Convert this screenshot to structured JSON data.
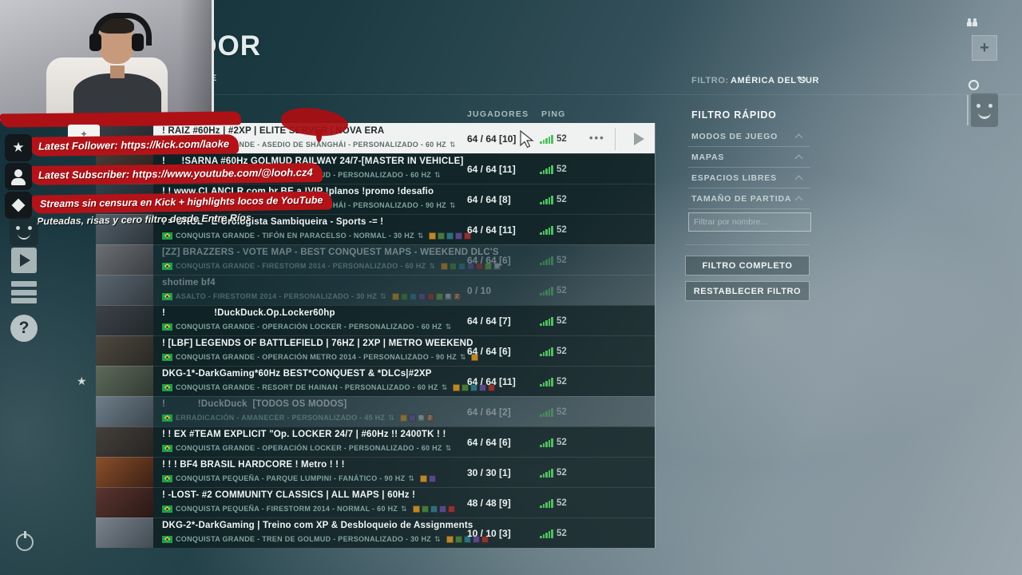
{
  "header": {
    "title": "EXPLORAR SERVIDOR",
    "subtitle_fragment": "TE"
  },
  "filter_bar": {
    "label": "FILTRO:",
    "value": "AMÉRICA DEL SUR"
  },
  "quick_filter": {
    "title": "FILTRO RÁPIDO",
    "sections": [
      "MODOS DE JUEGO",
      "MAPAS",
      "ESPACIOS LIBRES",
      "TAMAÑO DE PARTIDA"
    ],
    "name_filter_placeholder": "Filtrar por nombre...",
    "buttons": [
      "FILTRO COMPLETO",
      "RESTABLECER FILTRO"
    ]
  },
  "stream_overlay": {
    "alerts": [
      {
        "icon": "star",
        "text": "Latest Follower: https://kick.com/laoke"
      },
      {
        "icon": "person",
        "text": "Latest Subscriber: https://www.youtube.com/@looh.cz4"
      },
      {
        "icon": "diamond",
        "text": "Streams sin censura en Kick + highlights locos de YouTube"
      }
    ],
    "tagline": "Puteadas, risas y cero filtro desde Entre Ríos"
  },
  "icons": {
    "rail": [
      "smiley-face",
      "play",
      "server-list",
      "help",
      "power"
    ],
    "row": [
      "brazil-flag",
      "rank-updown-arrows",
      "ping-bars",
      "more-options-dots",
      "join-play"
    ],
    "top_right": [
      "people",
      "plus",
      "circle",
      "robot-face"
    ],
    "filter": [
      "refresh",
      "chevron-up"
    ]
  },
  "colors": {
    "accent_green": "#4fbf5f",
    "banner_red": "#b31318",
    "selected_row": "#f0f2f2"
  },
  "dlc_colors": {
    "xp-orange": "#b9872c",
    "xp-green": "#45783f",
    "xp-teal": "#2f6e7c",
    "xp-purple": "#564a84",
    "xp-red": "#8a3434",
    "prem-green": "#5f9447",
    "gear-gray": "#6f7f82",
    "num-badge": "#8a5a3a"
  },
  "server_list": {
    "columns": {
      "players": "JUGADORES",
      "ping": "PING"
    },
    "rows": [
      {
        "name": "! RAIZ #60Hz | #2XP | ELITE SERVER | NOVA ERA",
        "details": "CONQUISTA GRANDE - ASEDIO DE SHANGHÁI - PERSONALIZADO -  60 HZ",
        "players": "64 / 64 [10]",
        "ping": "52",
        "state": "selected",
        "favorite": false,
        "dlc": []
      },
      {
        "name": "!      !SARNA #60Hz GOLMUD RAILWAY 24/7-[MASTER IN VEHICLE]",
        "details": "CONQUISTA GRANDE - TREN DE GOLMUD - PERSONALIZADO -  60 HZ",
        "players": "64 / 64 [11]",
        "ping": "52",
        "state": "normal",
        "favorite": false,
        "dlc": []
      },
      {
        "name": "! ! www.CLANCLR.com.br BE a !VIP !planos !promo !desafio",
        "details": "CONQUISTA GRANDE - ASEDIO DE SHANGHÁI - PERSONALIZADO -  90 HZ",
        "players": "64 / 64 [8]",
        "ping": "52",
        "state": "normal",
        "favorite": false,
        "dlc": []
      },
      {
        "name": "! = UROL - E-Urologista Sambiqueira - Sports -= !",
        "details": "CONQUISTA GRANDE - TIFÓN EN PARACELSO - NORMAL -  30 HZ",
        "players": "64 / 64 [11]",
        "ping": "52",
        "state": "normal",
        "favorite": false,
        "dlc": [
          "xp-orange",
          "xp-green",
          "xp-teal",
          "xp-purple",
          "xp-red"
        ]
      },
      {
        "name": "[ZZ] BRAZZERS - VOTE MAP - BEST CONQUEST MAPS - WEEKEND DLC'S",
        "details": "CONQUISTA GRANDE - FIRESTORM 2014 - PERSONALIZADO -  60 HZ",
        "players": "64 / 64 [6]",
        "ping": "52",
        "state": "dimmed",
        "favorite": false,
        "dlc": [
          "xp-orange",
          "xp-green",
          "xp-teal",
          "xp-purple",
          "xp-red",
          "prem-green",
          "gear-gray"
        ]
      },
      {
        "name": "shotime bf4",
        "details": "ASALTO - FIRESTORM 2014 - PERSONALIZADO -  30 HZ",
        "players": "0 / 10",
        "ping": "52",
        "state": "dimmed",
        "favorite": false,
        "dlc": [
          "xp-orange",
          "xp-green",
          "xp-teal",
          "xp-purple",
          "xp-red",
          "prem-green",
          "gear-gray",
          "num-badge"
        ]
      },
      {
        "name": "!                  !DuckDuck.Op.Locker60hp",
        "details": "CONQUISTA GRANDE - OPERACIÓN LOCKER - PERSONALIZADO -  60 HZ",
        "players": "64 / 64 [7]",
        "ping": "52",
        "state": "normal",
        "favorite": false,
        "dlc": []
      },
      {
        "name": "! [LBF] LEGENDS OF BATTLEFIELD | 76HZ | 2XP | METRO WEEKEND",
        "details": "CONQUISTA GRANDE - OPERACIÓN METRO 2014 - PERSONALIZADO -  90 HZ",
        "players": "64 / 64 [6]",
        "ping": "52",
        "state": "normal",
        "favorite": false,
        "dlc": [
          "xp-orange"
        ]
      },
      {
        "name": "DKG-1*-DarkGaming*60Hz BEST*CONQUEST & *DLCs|#2XP",
        "details": "CONQUISTA GRANDE - RESORT DE HAINAN - PERSONALIZADO -  60 HZ",
        "players": "64 / 64 [11]",
        "ping": "52",
        "state": "normal",
        "favorite": true,
        "dlc": [
          "xp-orange",
          "xp-green",
          "xp-teal",
          "xp-purple",
          "xp-red"
        ]
      },
      {
        "name": "!            !DuckDuck  [TODOS OS MODOS]",
        "details": "ERRADICACIÓN - AMANECER - PERSONALIZADO -  45 HZ",
        "players": "64 / 64 [2]",
        "ping": "52",
        "state": "dimmed",
        "favorite": false,
        "dlc": [
          "xp-orange",
          "xp-purple",
          "gear-gray",
          "num-badge"
        ]
      },
      {
        "name": "! ! EX #TEAM EXPLICIT \"Op. LOCKER 24/7 | #60Hz !! 2400TK ! !",
        "details": "CONQUISTA GRANDE - OPERACIÓN LOCKER - PERSONALIZADO -  60 HZ",
        "players": "64 / 64 [6]",
        "ping": "52",
        "state": "normal",
        "favorite": false,
        "dlc": []
      },
      {
        "name": "! ! ! BF4 BRASIL HARDCORE ! Metro ! ! !",
        "details": "CONQUISTA PEQUEÑA - PARQUE LUMPINI - FANÁTICO -  90 HZ",
        "players": "30 / 30 [1]",
        "ping": "52",
        "state": "normal",
        "favorite": false,
        "dlc": [
          "xp-orange",
          "xp-purple"
        ]
      },
      {
        "name": "! -LOST- #2 COMMUNITY CLASSICS | ALL MAPS | 60Hz !",
        "details": "CONQUISTA PEQUEÑA - FIRESTORM 2014 - NORMAL -  60 HZ",
        "players": "48 / 48 [9]",
        "ping": "52",
        "state": "normal",
        "favorite": false,
        "dlc": [
          "xp-orange",
          "xp-green",
          "xp-teal",
          "xp-purple",
          "xp-red"
        ]
      },
      {
        "name": "DKG-2*-DarkGaming | Treino com XP & Desbloqueio de Assignments",
        "details": "CONQUISTA GRANDE - TREN DE GOLMUD - PERSONALIZADO -  30 HZ",
        "players": "10 / 10 [3]",
        "ping": "52",
        "state": "normal",
        "favorite": false,
        "dlc": [
          "xp-orange",
          "xp-green",
          "xp-teal",
          "xp-purple",
          "xp-red"
        ]
      }
    ]
  }
}
